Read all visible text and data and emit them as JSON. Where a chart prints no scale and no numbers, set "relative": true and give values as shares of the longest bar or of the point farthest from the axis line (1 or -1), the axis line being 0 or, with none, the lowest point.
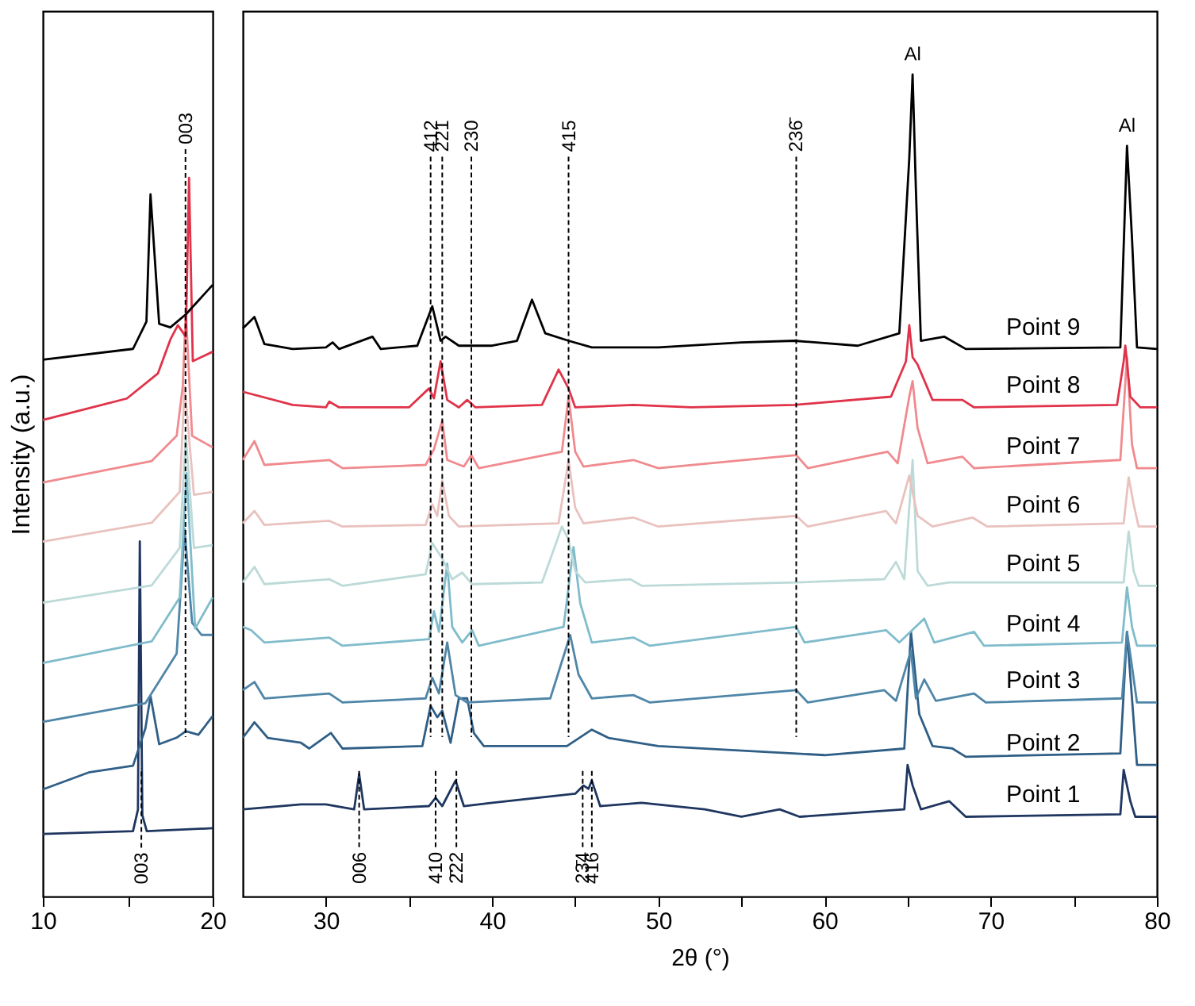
{
  "chart_data": [
    {
      "type": "line",
      "relative": true,
      "ylabel": "Intensity (a.u.)",
      "xlim": [
        10,
        20
      ],
      "xticks": [
        10,
        {
          "value": 15,
          "label": null
        },
        20
      ],
      "tick_labels": "x",
      "grid": false,
      "legend": false,
      "annotations": [
        {
          "text": "003",
          "x": 18.4,
          "y": 1.04
        },
        {
          "text": "003",
          "x": 15.8,
          "y": 0.068
        }
      ],
      "ref_lines": [
        {
          "axis": "x",
          "value": 18.4,
          "color": "#000000",
          "line_style": "dashed"
        },
        {
          "axis": "x",
          "value": 15.8,
          "color": "#000000",
          "line_style": "dashed"
        }
      ],
      "series": [
        {
          "color": "#1f3660",
          "x": [
            10,
            15.31,
            15.6,
            15.71,
            15.86,
            16.12,
            20
          ],
          "values": [
            0.087,
            0.091,
            0.121,
            0.494,
            0.113,
            0.091,
            0.095
          ]
        },
        {
          "color": "#2f5f86",
          "x": [
            10,
            12.75,
            15.31,
            16.04,
            16.34,
            16.85,
            17.88,
            18.42,
            19.16,
            20
          ],
          "values": [
            0.149,
            0.173,
            0.182,
            0.234,
            0.279,
            0.212,
            0.221,
            0.23,
            0.225,
            0.251
          ]
        },
        {
          "color": "#4f86a8",
          "x": [
            10,
            16.04,
            17.88,
            18.35,
            18.79,
            19.34,
            20
          ],
          "values": [
            0.243,
            0.269,
            0.338,
            0.511,
            0.381,
            0.364,
            0.364
          ]
        },
        {
          "color": "#80bccb",
          "x": [
            10,
            16.41,
            18.06,
            18.46,
            18.97,
            20
          ],
          "values": [
            0.325,
            0.355,
            0.416,
            0.589,
            0.373,
            0.416
          ]
        },
        {
          "color": "#bcdad8",
          "x": [
            10,
            16.41,
            18.06,
            18.42,
            18.9,
            20
          ],
          "values": [
            0.409,
            0.433,
            0.485,
            0.641,
            0.485,
            0.489
          ]
        },
        {
          "color": "#e9c2bf",
          "x": [
            10,
            16.41,
            18.06,
            18.35,
            18.9,
            20
          ],
          "values": [
            0.494,
            0.52,
            0.563,
            0.71,
            0.559,
            0.563
          ]
        },
        {
          "color": "#f08a8e",
          "x": [
            10,
            16.41,
            17.88,
            18.24,
            18.42,
            18.79,
            20
          ],
          "values": [
            0.576,
            0.606,
            0.641,
            0.71,
            0.814,
            0.641,
            0.625
          ]
        },
        {
          "color": "#e0334a",
          "x": [
            10,
            14.95,
            16.78,
            17.51,
            17.95,
            18.42,
            18.61,
            18.83,
            20
          ],
          "values": [
            0.663,
            0.693,
            0.728,
            0.775,
            0.795,
            0.779,
            1.0,
            0.745,
            0.758
          ]
        },
        {
          "color": "#000000",
          "x": [
            10,
            15.31,
            16.1,
            16.34,
            16.85,
            17.51,
            18.42,
            20
          ],
          "values": [
            0.747,
            0.762,
            0.8,
            0.977,
            0.797,
            0.792,
            0.81,
            0.851
          ]
        }
      ]
    },
    {
      "type": "line",
      "relative": true,
      "xlabel": "2θ (°)",
      "xlim": [
        25,
        80
      ],
      "xticks": [
        30,
        {
          "value": 35,
          "label": null
        },
        40,
        {
          "value": 45,
          "label": null
        },
        50,
        {
          "value": 55,
          "label": null
        },
        60,
        {
          "value": 65,
          "label": null
        },
        70,
        {
          "value": 75,
          "label": null
        },
        80
      ],
      "tick_labels": "x",
      "grid": false,
      "legend": false,
      "annotations": [
        {
          "text": "Al",
          "x": 65.3,
          "y": 1.0
        },
        {
          "text": "Al",
          "x": 78.2,
          "y": 0.913
        },
        {
          "text": "412",
          "x": 36.3,
          "y": 0.9
        },
        {
          "text": "2̄21",
          "x": 37.0,
          "y": 0.9
        },
        {
          "text": "230",
          "x": 38.75,
          "y": 0.9
        },
        {
          "text": "415",
          "x": 44.6,
          "y": 0.9
        },
        {
          "text": "236̄",
          "x": 58.3,
          "y": 0.9
        },
        {
          "text": "006",
          "x": 32.0,
          "y": 0.06
        },
        {
          "text": "410",
          "x": 36.6,
          "y": 0.06
        },
        {
          "text": "2̄22",
          "x": 37.85,
          "y": 0.06
        },
        {
          "text": "23̄4",
          "x": 45.45,
          "y": 0.06
        },
        {
          "text": "416",
          "x": 46.0,
          "y": 0.06
        }
      ],
      "ref_lines": [
        {
          "axis": "x",
          "value": 36.3,
          "color": "#000000",
          "line_style": "dashed"
        },
        {
          "axis": "x",
          "value": 37.0,
          "color": "#000000",
          "line_style": "dashed"
        },
        {
          "axis": "x",
          "value": 38.75,
          "color": "#000000",
          "line_style": "dashed"
        },
        {
          "axis": "x",
          "value": 44.6,
          "color": "#000000",
          "line_style": "dashed"
        },
        {
          "axis": "x",
          "value": 58.3,
          "color": "#000000",
          "line_style": "dashed"
        },
        {
          "axis": "x",
          "value": 32.0,
          "color": "#000000",
          "line_style": "dashed"
        },
        {
          "axis": "x",
          "value": 36.6,
          "color": "#000000",
          "line_style": "dashed"
        },
        {
          "axis": "x",
          "value": 37.85,
          "color": "#000000",
          "line_style": "dashed"
        },
        {
          "axis": "x",
          "value": 45.45,
          "color": "#000000",
          "line_style": "dashed"
        },
        {
          "axis": "x",
          "value": 46.0,
          "color": "#000000",
          "line_style": "dashed"
        }
      ],
      "series": [
        {
          "name": "Point 1",
          "color": "#1f3660",
          "x": [
            25,
            28.5,
            30,
            31.7,
            32.0,
            32.3,
            36.2,
            36.6,
            37.0,
            37.8,
            38.3,
            40,
            45,
            45.5,
            45.8,
            46.0,
            46.5,
            49,
            52.8,
            55,
            57.3,
            58.5,
            64.8,
            65.0,
            65.3,
            65.8,
            67.5,
            68.5,
            77.8,
            78.0,
            78.4,
            78.7,
            80
          ],
          "values": [
            0.106,
            0.112,
            0.112,
            0.106,
            0.149,
            0.106,
            0.11,
            0.12,
            0.11,
            0.141,
            0.11,
            0.114,
            0.125,
            0.135,
            0.131,
            0.141,
            0.11,
            0.114,
            0.106,
            0.097,
            0.106,
            0.097,
            0.106,
            0.16,
            0.135,
            0.106,
            0.116,
            0.097,
            0.1,
            0.154,
            0.116,
            0.097,
            0.097
          ]
        },
        {
          "name": "Point 2",
          "color": "#2f5f86",
          "x": [
            25,
            25.7,
            26.5,
            28.5,
            29,
            30.3,
            31,
            35.8,
            36.3,
            36.7,
            37.0,
            37.5,
            38.0,
            38.5,
            38.9,
            39.5,
            44.5,
            46.0,
            47,
            50,
            60,
            64.8,
            65.2,
            65.7,
            66.5,
            67.7,
            68.5,
            77.8,
            78.2,
            78.5,
            78.8,
            80
          ],
          "values": [
            0.193,
            0.212,
            0.193,
            0.187,
            0.18,
            0.199,
            0.18,
            0.183,
            0.232,
            0.218,
            0.226,
            0.187,
            0.241,
            0.241,
            0.199,
            0.183,
            0.183,
            0.203,
            0.193,
            0.183,
            0.172,
            0.18,
            0.322,
            0.222,
            0.183,
            0.18,
            0.17,
            0.174,
            0.322,
            0.241,
            0.16,
            0.16
          ]
        },
        {
          "name": "Point 3",
          "color": "#4f86a8",
          "x": [
            25,
            25.7,
            26.3,
            30.2,
            31,
            36,
            36.4,
            36.8,
            37.3,
            37.8,
            38.5,
            43.5,
            44.7,
            45.2,
            46,
            48.5,
            49.5,
            58.3,
            59,
            63.6,
            64.3,
            65.2,
            65.5,
            66.0,
            66.7,
            69.0,
            69.7,
            77.9,
            78.2,
            78.5,
            78.8,
            80
          ],
          "values": [
            0.251,
            0.261,
            0.241,
            0.247,
            0.236,
            0.241,
            0.266,
            0.247,
            0.309,
            0.245,
            0.236,
            0.241,
            0.318,
            0.27,
            0.241,
            0.245,
            0.236,
            0.251,
            0.236,
            0.251,
            0.238,
            0.299,
            0.241,
            0.264,
            0.238,
            0.247,
            0.236,
            0.241,
            0.322,
            0.28,
            0.236,
            0.236
          ]
        },
        {
          "name": "Point 4",
          "color": "#80bccb",
          "x": [
            25,
            25.5,
            26.3,
            30.2,
            31,
            36.2,
            36.5,
            36.8,
            37.3,
            37.6,
            38.2,
            38.8,
            39.2,
            44.3,
            44.9,
            45.3,
            46,
            48.5,
            49.5,
            58.3,
            58.8,
            63.7,
            64.5,
            66.0,
            66.6,
            69.0,
            69.6,
            77.9,
            78.2,
            78.5,
            78.8,
            80
          ],
          "values": [
            0.328,
            0.324,
            0.309,
            0.315,
            0.305,
            0.313,
            0.347,
            0.322,
            0.405,
            0.328,
            0.309,
            0.324,
            0.305,
            0.328,
            0.425,
            0.357,
            0.309,
            0.315,
            0.305,
            0.328,
            0.309,
            0.324,
            0.309,
            0.338,
            0.309,
            0.322,
            0.305,
            0.309,
            0.376,
            0.328,
            0.305,
            0.305
          ]
        },
        {
          "name": "Point 5",
          "color": "#bcdad8",
          "x": [
            25,
            25.7,
            26.3,
            30.2,
            31,
            36,
            36.4,
            37.0,
            37.6,
            38.2,
            38.8,
            43,
            44.2,
            44.6,
            45.0,
            45.6,
            48.3,
            49,
            58.3,
            63.6,
            64.3,
            64.8,
            65.3,
            65.6,
            66.2,
            67.5,
            78.0,
            78.3,
            78.6,
            78.9,
            80
          ],
          "values": [
            0.382,
            0.401,
            0.38,
            0.386,
            0.378,
            0.392,
            0.43,
            0.411,
            0.386,
            0.394,
            0.38,
            0.382,
            0.45,
            0.434,
            0.396,
            0.382,
            0.386,
            0.378,
            0.382,
            0.386,
            0.407,
            0.386,
            0.531,
            0.396,
            0.378,
            0.382,
            0.382,
            0.444,
            0.396,
            0.378,
            0.378
          ]
        },
        {
          "name": "Point 6",
          "color": "#e9c2bf",
          "x": [
            25,
            25.7,
            26.3,
            30.2,
            31,
            36,
            36.4,
            36.7,
            37.0,
            37.4,
            38,
            44.0,
            44.6,
            45.0,
            45.5,
            48.5,
            50,
            58.3,
            59,
            63.7,
            64.3,
            65.1,
            65.3,
            65.6,
            66.5,
            68.9,
            69.8,
            78.0,
            78.3,
            78.6,
            78.9,
            80
          ],
          "values": [
            0.454,
            0.469,
            0.452,
            0.457,
            0.45,
            0.452,
            0.477,
            0.463,
            0.506,
            0.463,
            0.45,
            0.454,
            0.531,
            0.473,
            0.454,
            0.461,
            0.45,
            0.463,
            0.45,
            0.469,
            0.454,
            0.512,
            0.492,
            0.463,
            0.45,
            0.461,
            0.45,
            0.454,
            0.51,
            0.477,
            0.45,
            0.45
          ]
        },
        {
          "name": "Point 7",
          "color": "#f08a8e",
          "x": [
            25,
            25.7,
            26.3,
            30.2,
            31,
            36,
            36.5,
            37.0,
            37.3,
            38.3,
            38.75,
            39.2,
            44.2,
            44.6,
            45.0,
            45.5,
            48.5,
            50,
            58.3,
            59,
            63.8,
            64.4,
            65.1,
            65.3,
            65.6,
            66.2,
            68.3,
            69,
            77.8,
            78.2,
            78.5,
            78.8,
            80
          ],
          "values": [
            0.531,
            0.554,
            0.525,
            0.531,
            0.521,
            0.525,
            0.544,
            0.579,
            0.531,
            0.523,
            0.537,
            0.521,
            0.541,
            0.608,
            0.541,
            0.523,
            0.531,
            0.521,
            0.537,
            0.521,
            0.541,
            0.527,
            0.608,
            0.627,
            0.57,
            0.527,
            0.535,
            0.521,
            0.531,
            0.656,
            0.55,
            0.521,
            0.521
          ]
        },
        {
          "name": "Point 8",
          "color": "#e0334a",
          "x": [
            25,
            28,
            30,
            30.2,
            30.8,
            35,
            36.2,
            36.5,
            36.9,
            37.3,
            38,
            38.5,
            39,
            43,
            44.0,
            44.6,
            45,
            48.5,
            52,
            58.2,
            64,
            64.9,
            65.1,
            65.3,
            65.6,
            66.5,
            68.3,
            69,
            77.6,
            78.0,
            78.1,
            78.4,
            79,
            80
          ],
          "values": [
            0.614,
            0.598,
            0.595,
            0.602,
            0.595,
            0.595,
            0.618,
            0.606,
            0.651,
            0.604,
            0.595,
            0.604,
            0.595,
            0.598,
            0.641,
            0.618,
            0.595,
            0.598,
            0.595,
            0.598,
            0.608,
            0.651,
            0.695,
            0.656,
            0.647,
            0.604,
            0.604,
            0.595,
            0.598,
            0.651,
            0.67,
            0.608,
            0.595,
            0.595
          ]
        },
        {
          "name": "Point 9",
          "color": "#000000",
          "x": [
            25,
            25.7,
            26.3,
            28,
            30,
            30.4,
            30.8,
            32.8,
            33.3,
            35.5,
            36.4,
            36.9,
            37.2,
            38,
            40,
            41.5,
            42.4,
            43.2,
            44.6,
            46,
            50,
            55,
            58.2,
            62,
            64.5,
            65.1,
            65.3,
            65.5,
            65.8,
            67.2,
            68.5,
            77.8,
            78.2,
            78.5,
            78.8,
            80
          ],
          "values": [
            0.691,
            0.705,
            0.672,
            0.666,
            0.668,
            0.674,
            0.666,
            0.681,
            0.666,
            0.67,
            0.718,
            0.676,
            0.681,
            0.67,
            0.67,
            0.676,
            0.726,
            0.685,
            0.676,
            0.668,
            0.668,
            0.674,
            0.676,
            0.67,
            0.685,
            0.898,
            1.0,
            0.859,
            0.676,
            0.681,
            0.666,
            0.668,
            0.913,
            0.801,
            0.668,
            0.666
          ]
        }
      ]
    }
  ]
}
